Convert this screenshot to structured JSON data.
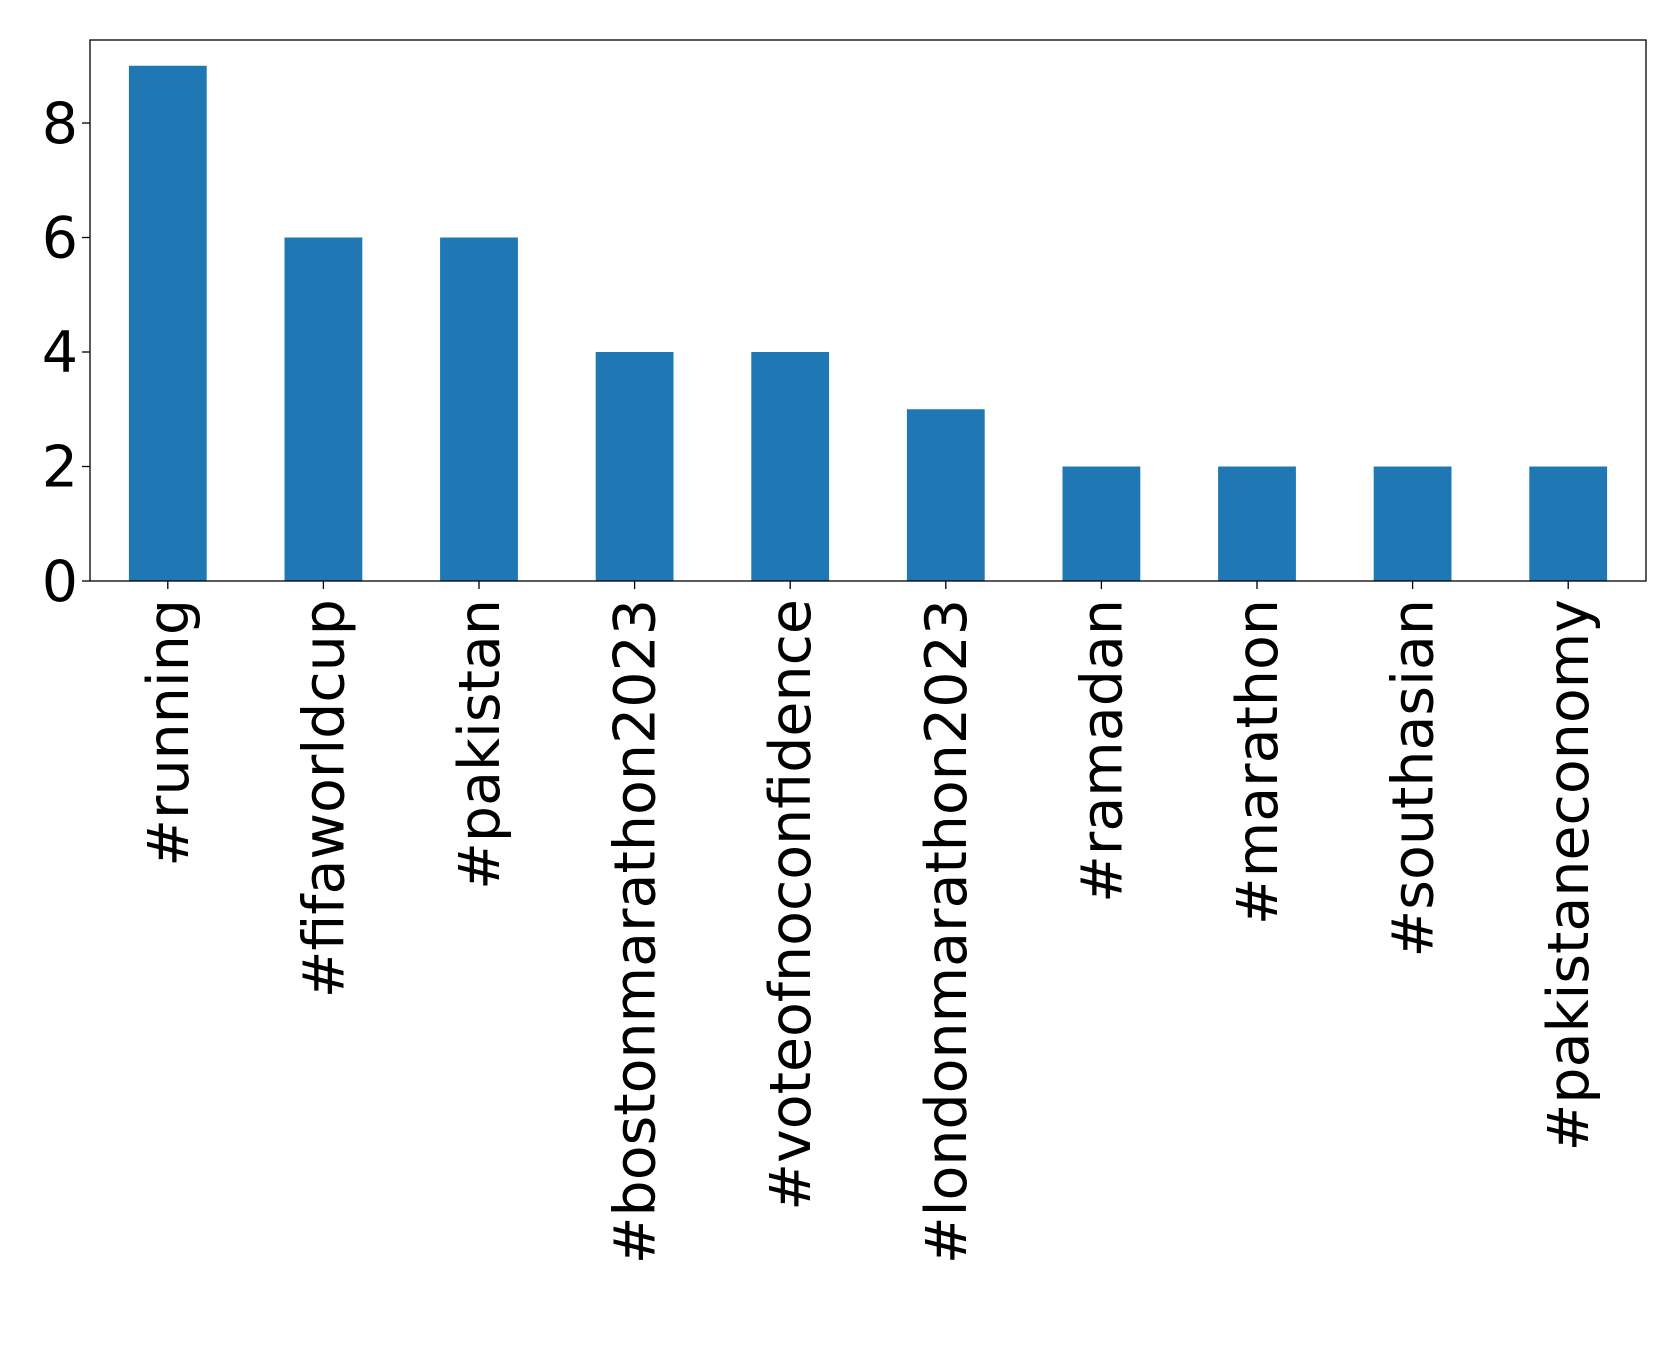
{
  "chart_data": {
    "type": "bar",
    "categories": [
      "#running",
      "#fifaworldcup",
      "#pakistan",
      "#bostonmarathon2023",
      "#voteofnoconfidence",
      "#londonmarathon2023",
      "#ramadan",
      "#marathon",
      "#southasian",
      "#pakistaneconomy"
    ],
    "values": [
      9,
      6,
      6,
      4,
      4,
      3,
      2,
      2,
      2,
      2
    ],
    "title": "",
    "xlabel": "",
    "ylabel": "",
    "ylim": [
      0,
      9.45
    ],
    "yticks": [
      "0",
      "2",
      "4",
      "6",
      "8"
    ],
    "bar_color": "#1f77b4",
    "grid": false,
    "legend": "none"
  }
}
